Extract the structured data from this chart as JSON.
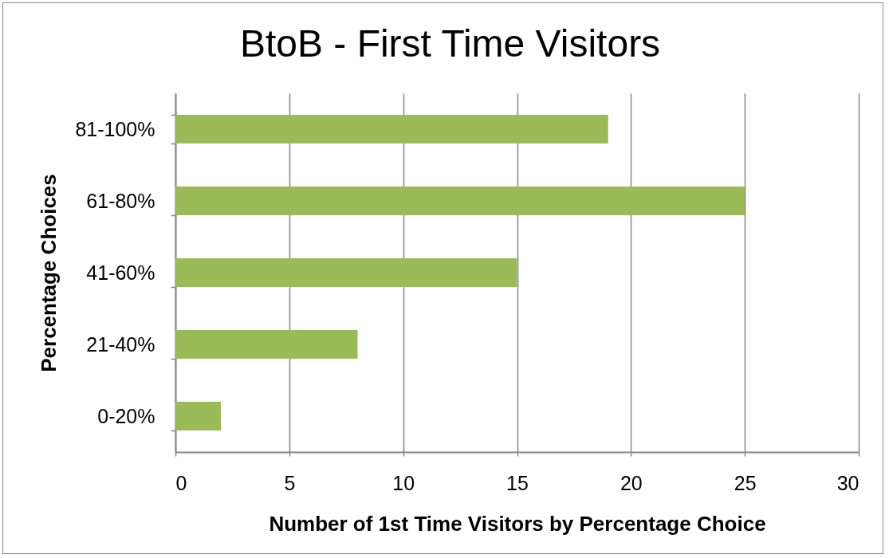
{
  "chart_data": {
    "type": "bar",
    "orientation": "horizontal",
    "title": "BtoB - First Time Visitors",
    "xlabel": "Number of 1st Time Visitors by Percentage Choice",
    "ylabel": "Percentage Choices",
    "categories": [
      "81-100%",
      "61-80%",
      "41-60%",
      "21-40%",
      "0-20%"
    ],
    "values": [
      19,
      25,
      15,
      8,
      2
    ],
    "color": "#9bbb59",
    "xlim": [
      0,
      30
    ],
    "xticks": [
      0,
      5,
      10,
      15,
      20,
      25,
      30
    ],
    "grid": "x"
  }
}
